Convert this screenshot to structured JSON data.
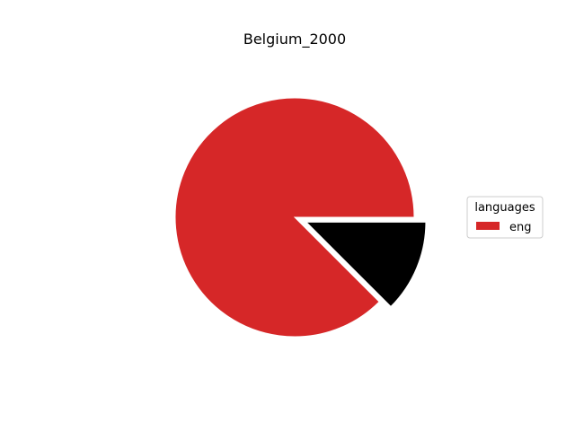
{
  "chart_data": {
    "type": "pie",
    "title": "Belgium_2000",
    "labels": [
      "eng",
      ""
    ],
    "values": [
      87.5,
      12.5
    ],
    "colors": [
      "#d62728",
      "#000000"
    ],
    "explode": [
      false,
      true
    ],
    "legend": {
      "title": "languages",
      "entries": [
        {
          "label": "eng",
          "color": "#d62728"
        }
      ],
      "placement": "right"
    }
  }
}
